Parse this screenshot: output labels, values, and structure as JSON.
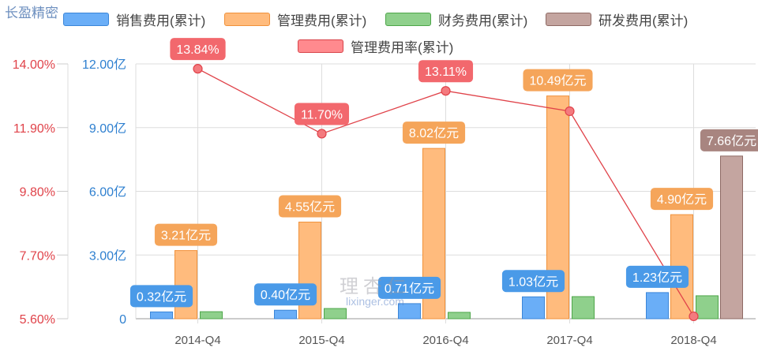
{
  "title": "长盈精密",
  "watermark": {
    "cn": "理杏仁",
    "en": "lixinger.com"
  },
  "chart_data": {
    "type": "bar",
    "categories": [
      "2014-Q4",
      "2015-Q4",
      "2016-Q4",
      "2017-Q4",
      "2018-Q4"
    ],
    "unit_label": "亿元",
    "left_axis_rate": {
      "ticks": [
        "5.60%",
        "7.70%",
        "9.80%",
        "11.90%",
        "14.00%"
      ],
      "min": 5.6,
      "max": 14.0,
      "color": "#e0434a"
    },
    "left_axis_amount": {
      "ticks": [
        "0",
        "3.00亿",
        "6.00亿",
        "9.00亿",
        "12.00亿"
      ],
      "min": 0,
      "max": 12,
      "color": "#2f80d0"
    },
    "grid": true,
    "legend_position": "top",
    "series": [
      {
        "name": "销售费用(累计)",
        "type": "bar",
        "color": "#6aaef7",
        "border": "#3b86d8",
        "label_color": "#4a9ae8",
        "values": [
          0.32,
          0.4,
          0.71,
          1.03,
          1.23
        ],
        "labels": [
          "0.32亿元",
          "0.40亿元",
          "0.71亿元",
          "1.03亿元",
          "1.23亿元"
        ]
      },
      {
        "name": "管理费用(累计)",
        "type": "bar",
        "color": "#ffbb7d",
        "border": "#f0913a",
        "label_color": "#f5a55a",
        "values": [
          3.21,
          4.55,
          8.02,
          10.49,
          4.9
        ],
        "labels": [
          "3.21亿元",
          "4.55亿元",
          "8.02亿元",
          "10.49亿元",
          "4.90亿元"
        ]
      },
      {
        "name": "财务费用(累计)",
        "type": "bar",
        "color": "#8fd08c",
        "border": "#4ea64a",
        "label_color": "#6cbf68",
        "values": [
          0.33,
          0.48,
          0.3,
          1.04,
          1.08
        ],
        "labels": [
          "",
          "",
          "",
          "",
          ""
        ]
      },
      {
        "name": "研发费用(累计)",
        "type": "bar",
        "color": "#c4a5a0",
        "border": "#8e6a64",
        "label_color": "#a88580",
        "values": [
          null,
          null,
          null,
          null,
          7.66
        ],
        "labels": [
          "",
          "",
          "",
          "",
          "7.66亿元"
        ]
      },
      {
        "name": "管理费用率(累计)",
        "type": "line",
        "axis": "rate",
        "color": "#e0434a",
        "point_color": "#f47a7e",
        "label_color": "#f2686d",
        "values": [
          13.84,
          11.7,
          13.11,
          12.44,
          5.68
        ],
        "labels": [
          "13.84%",
          "11.70%",
          "13.11%",
          "",
          ""
        ]
      }
    ]
  }
}
